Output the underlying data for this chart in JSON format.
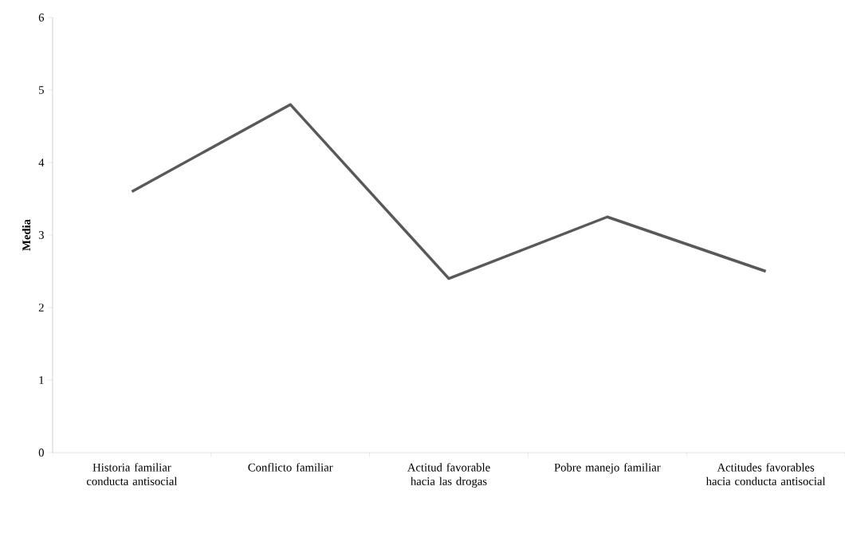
{
  "chart_data": {
    "type": "line",
    "ylabel": "Media",
    "categories": [
      "Historia familiar conducta antisocial",
      "Conflicto familiar",
      "Actitud favorable hacia las drogas",
      "Pobre manejo familiar",
      "Actitudes favorables hacia conducta antisocial"
    ],
    "values": [
      3.6,
      4.8,
      2.4,
      3.25,
      2.5
    ],
    "color": "#595959",
    "ylim": [
      0,
      6
    ],
    "yticks": [
      0,
      1,
      2,
      3,
      4,
      5,
      6
    ]
  }
}
